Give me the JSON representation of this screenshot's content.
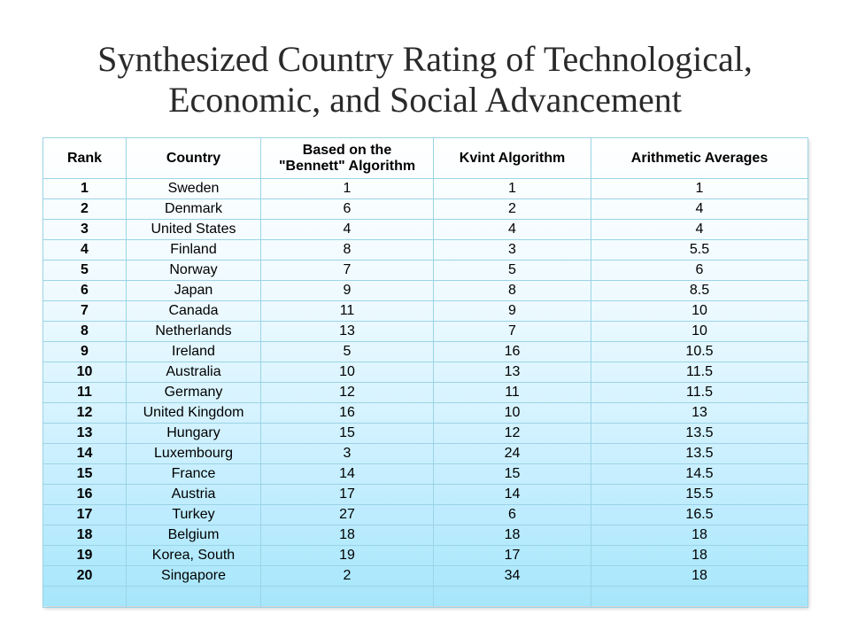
{
  "title": {
    "line1": "Synthesized Country Rating of Technological,",
    "line2": "Economic, and Social Advancement"
  },
  "table": {
    "headers": {
      "rank": "Rank",
      "country": "Country",
      "bennett_line1": "Based on the",
      "bennett_line2": "\"Bennett\" Algorithm",
      "kvint": "Kvint Algorithm",
      "arithmetic": "Arithmetic Averages"
    },
    "rows": [
      {
        "rank": "1",
        "country": "Sweden",
        "bennett": "1",
        "kvint": "1",
        "arithmetic": "1"
      },
      {
        "rank": "2",
        "country": "Denmark",
        "bennett": "6",
        "kvint": "2",
        "arithmetic": "4"
      },
      {
        "rank": "3",
        "country": "United States",
        "bennett": "4",
        "kvint": "4",
        "arithmetic": "4"
      },
      {
        "rank": "4",
        "country": "Finland",
        "bennett": "8",
        "kvint": "3",
        "arithmetic": "5.5"
      },
      {
        "rank": "5",
        "country": "Norway",
        "bennett": "7",
        "kvint": "5",
        "arithmetic": "6"
      },
      {
        "rank": "6",
        "country": "Japan",
        "bennett": "9",
        "kvint": "8",
        "arithmetic": "8.5"
      },
      {
        "rank": "7",
        "country": "Canada",
        "bennett": "11",
        "kvint": "9",
        "arithmetic": "10"
      },
      {
        "rank": "8",
        "country": "Netherlands",
        "bennett": "13",
        "kvint": "7",
        "arithmetic": "10"
      },
      {
        "rank": "9",
        "country": "Ireland",
        "bennett": "5",
        "kvint": "16",
        "arithmetic": "10.5"
      },
      {
        "rank": "10",
        "country": "Australia",
        "bennett": "10",
        "kvint": "13",
        "arithmetic": "11.5"
      },
      {
        "rank": "11",
        "country": "Germany",
        "bennett": "12",
        "kvint": "11",
        "arithmetic": "11.5"
      },
      {
        "rank": "12",
        "country": "United Kingdom",
        "bennett": "16",
        "kvint": "10",
        "arithmetic": "13"
      },
      {
        "rank": "13",
        "country": "Hungary",
        "bennett": "15",
        "kvint": "12",
        "arithmetic": "13.5"
      },
      {
        "rank": "14",
        "country": "Luxembourg",
        "bennett": "3",
        "kvint": "24",
        "arithmetic": "13.5"
      },
      {
        "rank": "15",
        "country": "France",
        "bennett": "14",
        "kvint": "15",
        "arithmetic": "14.5"
      },
      {
        "rank": "16",
        "country": "Austria",
        "bennett": "17",
        "kvint": "14",
        "arithmetic": "15.5"
      },
      {
        "rank": "17",
        "country": "Turkey",
        "bennett": "27",
        "kvint": "6",
        "arithmetic": "16.5"
      },
      {
        "rank": "18",
        "country": "Belgium",
        "bennett": "18",
        "kvint": "18",
        "arithmetic": "18"
      },
      {
        "rank": "19",
        "country": "Korea, South",
        "bennett": "19",
        "kvint": "17",
        "arithmetic": "18"
      },
      {
        "rank": "20",
        "country": "Singapore",
        "bennett": "2",
        "kvint": "34",
        "arithmetic": "18"
      }
    ]
  }
}
